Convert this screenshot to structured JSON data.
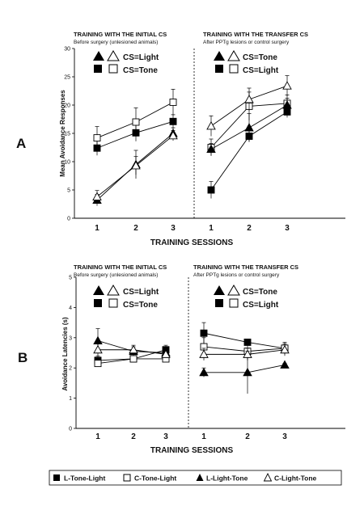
{
  "figure": {
    "panel_a_letter": "A",
    "panel_b_letter": "B",
    "xlabel": "TRAINING SESSIONS",
    "legend": [
      {
        "label": "L-Tone-Light",
        "marker": "square-filled"
      },
      {
        "label": "C-Tone-Light",
        "marker": "square-open"
      },
      {
        "label": "L-Light-Tone",
        "marker": "triangle-filled"
      },
      {
        "label": "C-Light-Tone",
        "marker": "triangle-open"
      }
    ]
  },
  "chart_data": [
    {
      "type": "line",
      "panel": "A",
      "ylabel": "Mean Avoidance Responses",
      "ylim": [
        0,
        30
      ],
      "yticks": [
        0,
        5,
        10,
        15,
        20,
        25,
        30
      ],
      "x": [
        1,
        2,
        3
      ],
      "groups": [
        {
          "title": "TRAINING WITH THE INITIAL CS",
          "subtitle": "Before surgery (unlesioned animals)",
          "key": [
            "CS=Light",
            "CS=Tone"
          ],
          "series": [
            {
              "name": "L-Tone-Light",
              "marker": "square-filled",
              "values": [
                12.4,
                15.1,
                17.1
              ],
              "err": [
                1.3,
                1.5,
                1.2
              ]
            },
            {
              "name": "C-Tone-Light",
              "marker": "square-open",
              "values": [
                14.2,
                17.0,
                20.5
              ],
              "err": [
                2.0,
                2.5,
                2.3
              ]
            },
            {
              "name": "L-Light-Tone",
              "marker": "triangle-filled",
              "values": [
                3.2,
                9.5,
                15.0
              ],
              "err": [
                1.0,
                2.5,
                1.0
              ]
            },
            {
              "name": "C-Light-Tone",
              "marker": "triangle-open",
              "values": [
                3.8,
                9.3,
                14.6
              ],
              "err": [
                1.1,
                1.6,
                0.9
              ]
            }
          ]
        },
        {
          "title": "TRAINING WITH THE TRANSFER CS",
          "subtitle": "After PPTg lesions or control surgery",
          "key": [
            "CS=Tone",
            "CS=Light"
          ],
          "series": [
            {
              "name": "L-Tone-Light",
              "marker": "square-filled",
              "values": [
                5.0,
                14.5,
                18.8
              ],
              "err": [
                1.5,
                1.0,
                1.0
              ]
            },
            {
              "name": "C-Tone-Light",
              "marker": "square-open",
              "values": [
                12.5,
                19.8,
                20.3
              ],
              "err": [
                1.5,
                2.5,
                1.5
              ]
            },
            {
              "name": "L-Light-Tone",
              "marker": "triangle-filled",
              "values": [
                12.2,
                16.0,
                20.0
              ],
              "err": [
                1.0,
                2.5,
                1.2
              ]
            },
            {
              "name": "C-Light-Tone",
              "marker": "triangle-open",
              "values": [
                16.3,
                21.0,
                23.4
              ],
              "err": [
                1.8,
                2.0,
                1.8
              ]
            }
          ]
        }
      ]
    },
    {
      "type": "line",
      "panel": "B",
      "ylabel": "Avoidance Latencies (s)",
      "ylim": [
        0,
        5
      ],
      "yticks": [
        0,
        1,
        2,
        3,
        4,
        5
      ],
      "x": [
        1,
        2,
        3
      ],
      "groups": [
        {
          "title": "TRAINING WITH THE INITIAL CS",
          "subtitle": "Before surgery (unlesioned animals)",
          "key": [
            "CS=Light",
            "CS=Tone"
          ],
          "series": [
            {
              "name": "L-Tone-Light",
              "marker": "square-filled",
              "values": [
                2.25,
                2.3,
                2.6
              ],
              "err": [
                0.15,
                0.1,
                0.15
              ]
            },
            {
              "name": "C-Tone-Light",
              "marker": "square-open",
              "values": [
                2.15,
                2.3,
                2.3
              ],
              "err": [
                0.1,
                0.1,
                0.1
              ]
            },
            {
              "name": "L-Light-Tone",
              "marker": "triangle-filled",
              "values": [
                2.9,
                2.55,
                2.5
              ],
              "err": [
                0.4,
                0.15,
                0.15
              ]
            },
            {
              "name": "C-Light-Tone",
              "marker": "triangle-open",
              "values": [
                2.6,
                2.6,
                2.45
              ],
              "err": [
                0.2,
                0.15,
                0.1
              ]
            }
          ]
        },
        {
          "title": "TRAINING WITH THE TRANSFER CS",
          "subtitle": "After PPTg lesions or control surgery",
          "key": [
            "CS=Tone",
            "CS=Light"
          ],
          "series": [
            {
              "name": "L-Tone-Light",
              "marker": "square-filled",
              "values": [
                3.15,
                2.85,
                2.65
              ],
              "err": [
                0.35,
                0.1,
                0.1
              ]
            },
            {
              "name": "C-Tone-Light",
              "marker": "square-open",
              "values": [
                2.7,
                2.55,
                2.65
              ],
              "err": [
                0.3,
                0.25,
                0.2
              ]
            },
            {
              "name": "L-Light-Tone",
              "marker": "triangle-filled",
              "values": [
                1.85,
                1.85,
                2.1
              ],
              "err": [
                0.15,
                0.7,
                0.05
              ]
            },
            {
              "name": "C-Light-Tone",
              "marker": "triangle-open",
              "values": [
                2.45,
                2.45,
                2.6
              ],
              "err": [
                0.2,
                0.2,
                0.2
              ]
            }
          ]
        }
      ]
    }
  ]
}
